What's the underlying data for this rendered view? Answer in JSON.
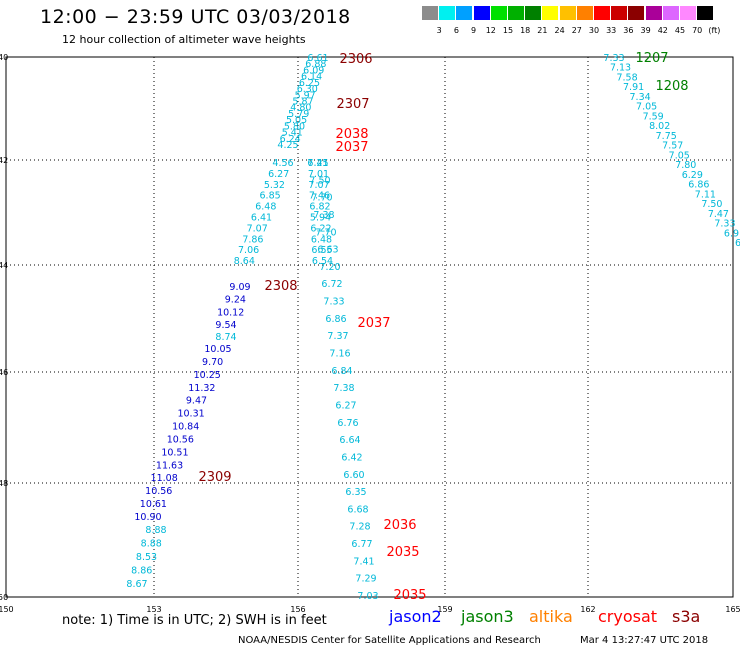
{
  "header": {
    "title": "12:00  −  23:59  UTC  03/03/2018",
    "subtitle": "12 hour collection of altimeter wave heights"
  },
  "colorbar": {
    "colors": [
      "#8c8c8c",
      "#00f0f0",
      "#00a0ff",
      "#0000ff",
      "#00e000",
      "#00b000",
      "#008000",
      "#ffff00",
      "#ffc000",
      "#ff8000",
      "#ff0000",
      "#cc0000",
      "#8b0000",
      "#aa0099",
      "#dd66ff",
      "#ff88ff",
      "#000000"
    ],
    "labels": [
      "3",
      "6",
      "9",
      "12",
      "15",
      "18",
      "21",
      "24",
      "27",
      "30",
      "33",
      "36",
      "39",
      "42",
      "45",
      "70",
      "(ft)"
    ]
  },
  "axes": {
    "x_ticks": [
      "150",
      "153",
      "156",
      "159",
      "162",
      "165"
    ],
    "y_ticks": [
      "40",
      "42",
      "44",
      "46",
      "48",
      "50"
    ]
  },
  "passes": [
    {
      "color": "#00b8d8",
      "values": [
        "6.61",
        "6.88",
        "6.09",
        "6.14",
        "6.25",
        "6.30",
        "5.97",
        "5.87",
        "4.80",
        "5.79",
        "5.05",
        "5.80",
        "5.41",
        "6.24",
        "4.25"
      ]
    },
    {
      "color": "#00b8d8",
      "values": [
        "4.56",
        "6.45",
        "6.27",
        "7.01",
        "5.32",
        "7.07",
        "6.85",
        "7.46",
        "6.48",
        "6.82",
        "6.41",
        "5.94",
        "7.07",
        "6.22",
        "7.86",
        "6.48",
        "7.06",
        "6.55",
        "8.64",
        "6.54"
      ]
    },
    {
      "color": "#0000cc",
      "values": [
        "9.09",
        "9.24",
        "10.12",
        "9.54"
      ]
    },
    {
      "color": "#00b8d8",
      "values": [
        "7.21",
        "7.50",
        "7.70",
        "7.38",
        "7.70",
        "6.63",
        "7.20",
        "6.72",
        "7.33",
        "6.86",
        "7.37",
        "7.16",
        "6.84",
        "7.38",
        "6.27",
        "6.76",
        "6.64",
        "6.42",
        "6.60",
        "6.35",
        "6.68",
        "7.28",
        "6.77",
        "7.41",
        "7.29",
        "7.03"
      ]
    },
    {
      "color": "#00b8d8",
      "values": [
        "8.74"
      ]
    },
    {
      "color": "#0000cc",
      "values": [
        "10.05",
        "9.70",
        "10.25",
        "11.32",
        "9.47",
        "10.31",
        "10.84",
        "10.56",
        "10.51",
        "11.63",
        "11.08",
        "10.56",
        "10.61",
        "10.90"
      ]
    },
    {
      "color": "#00b8d8",
      "values": [
        "8.88",
        "8.88",
        "8.53",
        "8.86",
        "8.67"
      ]
    },
    {
      "color": "#00b8d8",
      "values": [
        "7.33",
        "7.13",
        "7.58",
        "7.91",
        "7.34",
        "7.05",
        "7.59",
        "8.02",
        "7.75",
        "7.57",
        "7.05",
        "7.80",
        "6.29",
        "6.86",
        "7.11",
        "7.50",
        "7.47",
        "7.33",
        "6.9",
        "6"
      ]
    }
  ],
  "time_labels": [
    {
      "text": "2306",
      "color": "#8b0000"
    },
    {
      "text": "2307",
      "color": "#8b0000"
    },
    {
      "text": "2038",
      "color": "#ff0000"
    },
    {
      "text": "2037",
      "color": "#ff0000"
    },
    {
      "text": "2308",
      "color": "#8b0000"
    },
    {
      "text": "2037",
      "color": "#ff0000"
    },
    {
      "text": "2309",
      "color": "#8b0000"
    },
    {
      "text": "2036",
      "color": "#ff0000"
    },
    {
      "text": "2035",
      "color": "#ff0000"
    },
    {
      "text": "2035",
      "color": "#ff0000"
    },
    {
      "text": "1207",
      "color": "#008000"
    },
    {
      "text": "1208",
      "color": "#008000"
    }
  ],
  "footer": {
    "note": "note:  1) Time is in UTC;  2) SWH is in feet",
    "satellites": [
      {
        "name": "jason2",
        "color": "#0000ff"
      },
      {
        "name": "jason3",
        "color": "#008000"
      },
      {
        "name": "altika",
        "color": "#ff8000"
      },
      {
        "name": "cryosat",
        "color": "#ff0000"
      },
      {
        "name": "s3a",
        "color": "#8b0000"
      }
    ],
    "credit": "NOAA/NESDIS Center for Satellite Applications and Research",
    "timestamp": "Mar  4 13:27:47 UTC 2018"
  }
}
